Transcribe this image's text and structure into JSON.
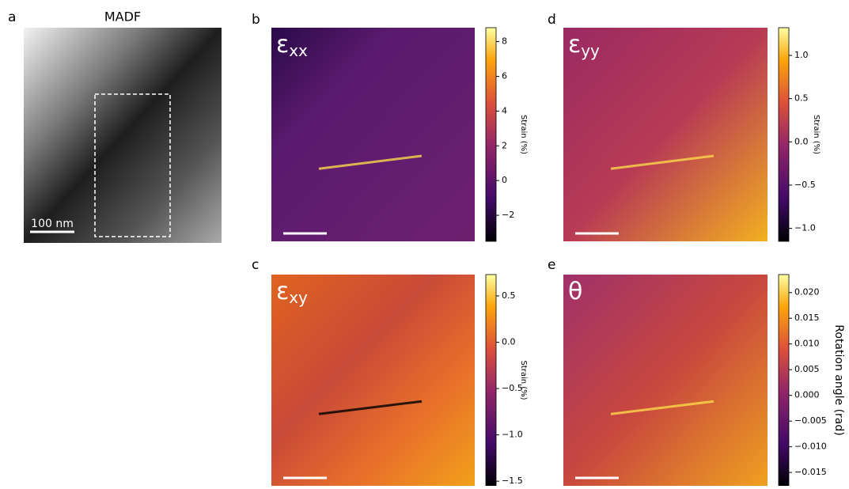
{
  "panels": [
    {
      "label": "a",
      "title": "MADF",
      "scale_bar": "100 nm"
    },
    {
      "label": "b",
      "symbol": "ε",
      "subscript": "xx",
      "colorbar": {
        "label": "Strain (%)",
        "lim": [
          -3.5,
          8.8
        ],
        "ticks": [
          8,
          6,
          4,
          2,
          0,
          {
            "value": -2,
            "label": "−2"
          }
        ]
      }
    },
    {
      "label": "c",
      "symbol": "ε",
      "subscript": "xy",
      "colorbar": {
        "label": "Strain (%)",
        "lim": [
          -1.55,
          0.73
        ],
        "ticks": [
          0.5,
          {
            "value": 0,
            "label": "0.0"
          },
          {
            "value": -0.5,
            "label": "−0.5"
          },
          {
            "value": -1,
            "label": "−1.0"
          },
          {
            "value": -1.5,
            "label": "−1.5"
          }
        ]
      }
    },
    {
      "label": "d",
      "symbol": "ε",
      "subscript": "yy",
      "colorbar": {
        "label": "Strain (%)",
        "lim": [
          -1.15,
          1.32
        ],
        "ticks": [
          {
            "value": 1,
            "label": "1.0"
          },
          0.5,
          {
            "value": 0,
            "label": "0.0"
          },
          {
            "value": -0.5,
            "label": "−0.5"
          },
          {
            "value": -1,
            "label": "−1.0"
          }
        ]
      }
    },
    {
      "label": "e",
      "symbol": "θ",
      "colorbar": {
        "label": "Rotation angle (rad)",
        "lim": [
          -0.0176,
          0.0235
        ],
        "ticks": [
          {
            "value": 0.02,
            "label": "0.020"
          },
          {
            "value": 0.015,
            "label": "0.015"
          },
          {
            "value": 0.01,
            "label": "0.010"
          },
          {
            "value": 0.005,
            "label": "0.005"
          },
          {
            "value": 0,
            "label": "0.000"
          },
          {
            "value": -0.005,
            "label": "−0.005"
          },
          {
            "value": -0.01,
            "label": "−0.010"
          },
          {
            "value": -0.015,
            "label": "−0.015"
          }
        ]
      }
    }
  ]
}
